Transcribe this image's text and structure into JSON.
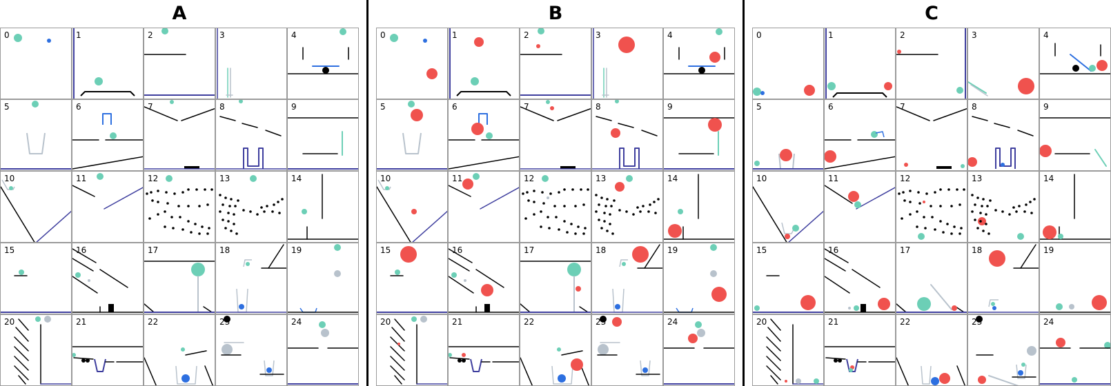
{
  "panels": [
    {
      "label": "A",
      "cells": [
        "0",
        "1",
        "2",
        "3",
        "4",
        "5",
        "6",
        "7",
        "8",
        "9",
        "10",
        "11",
        "12",
        "13",
        "14",
        "15",
        "16",
        "17",
        "18",
        "19",
        "20",
        "21",
        "22",
        "23",
        "24"
      ]
    },
    {
      "label": "B",
      "cells": [
        "0",
        "1",
        "2",
        "3",
        "4",
        "5",
        "6",
        "7",
        "8",
        "9",
        "10",
        "11",
        "12",
        "13",
        "14",
        "15",
        "16",
        "17",
        "18",
        "19",
        "20",
        "21",
        "22",
        "23",
        "24"
      ]
    },
    {
      "label": "C",
      "cells": [
        "0",
        "1",
        "2",
        "3",
        "4",
        "5",
        "6",
        "7",
        "8",
        "9",
        "10",
        "11",
        "12",
        "13",
        "14",
        "15",
        "16",
        "17",
        "18",
        "19",
        "20",
        "21",
        "22",
        "23",
        "24"
      ]
    }
  ],
  "colors": {
    "green": "#6ccfb6",
    "red": "#f0524e",
    "blue": "#2d6fe0",
    "gray": "#b8c2cc",
    "purple": "#3e3e9e",
    "black": "#000000"
  }
}
